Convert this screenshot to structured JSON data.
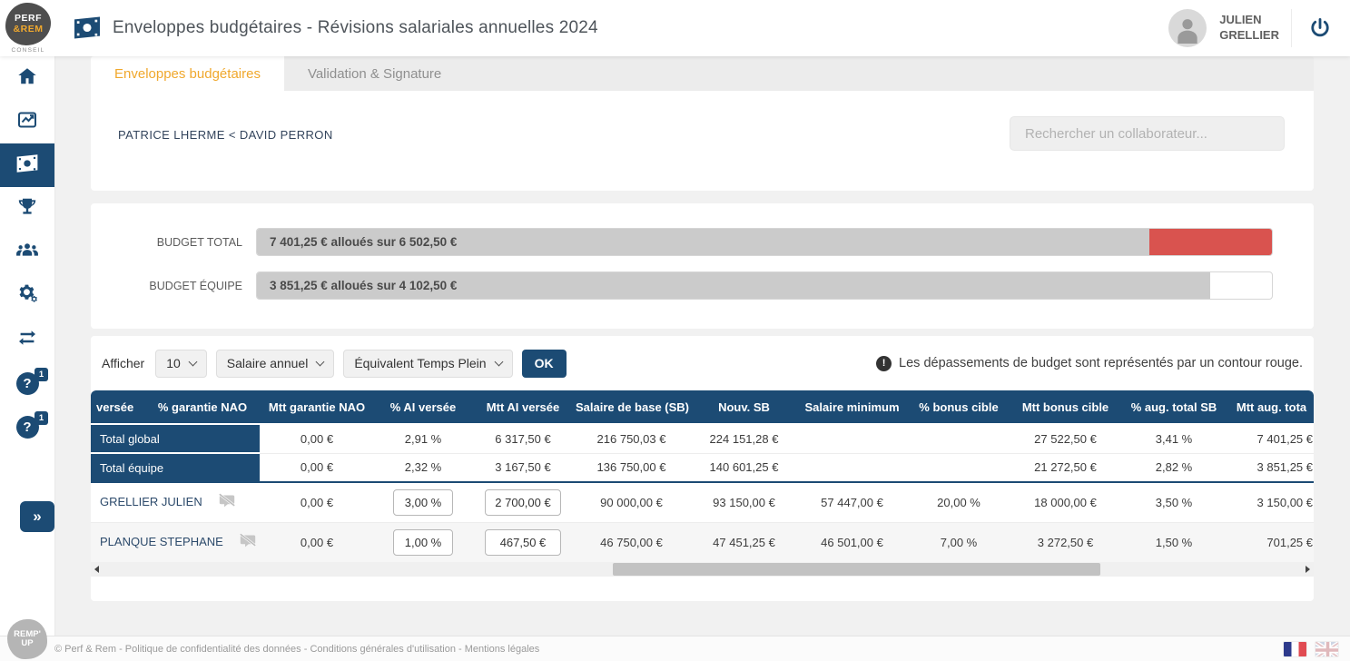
{
  "header": {
    "logo": {
      "line1": "PERF",
      "line2": "&REM",
      "subtitle": "CONSEIL"
    },
    "title": "Enveloppes budgétaires - Révisions salariales annuelles 2024",
    "user": {
      "line1": "JULIEN",
      "line2": "GRELLIER"
    }
  },
  "icons": {
    "help_glyph": "?",
    "alert_glyph": "!",
    "collapse_glyph": "»"
  },
  "sidebar": {
    "badge1": "1",
    "badge2": "1"
  },
  "tabs": {
    "items": [
      {
        "label": "Enveloppes budgétaires"
      },
      {
        "label": "Validation & Signature"
      }
    ]
  },
  "toolbar": {
    "breadcrumb": "PATRICE LHERME < DAVID PERRON"
  },
  "search": {
    "placeholder": "Rechercher un collaborateur..."
  },
  "budget": {
    "bars": [
      {
        "label": "BUDGET TOTAL",
        "text": "7 401,25 € alloués sur 6 502,50 €",
        "fill_pct": 87.9,
        "overflow_pct": 12.1
      },
      {
        "label": "BUDGET ÉQUIPE",
        "text": "3 851,25 € alloués sur 4 102,50 €",
        "fill_pct": 93.9,
        "overflow_pct": 0
      }
    ]
  },
  "controls": {
    "show_label": "Afficher",
    "show_value": "10",
    "period_value": "Salaire annuel",
    "fte_value": "Équivalent Temps Plein",
    "ok_label": "OK"
  },
  "notice": {
    "text": "Les dépassements de budget sont représentés par un contour rouge."
  },
  "table": {
    "headers": [
      "versée",
      "% garantie NAO",
      "Mtt garantie NAO",
      "% AI versée",
      "Mtt AI versée",
      "Salaire de base (SB)",
      "Nouv. SB",
      "Salaire minimum",
      "% bonus cible",
      "Mtt bonus cible",
      "% aug. total SB",
      "Mtt aug. tota"
    ],
    "totals": [
      {
        "label": "Total global",
        "cells": [
          "0,00 €",
          "2,91 %",
          "6 317,50 €",
          "216 750,03 €",
          "224 151,28 €",
          "",
          "",
          "27 522,50 €",
          "3,41 %",
          "7 401,25 €"
        ]
      },
      {
        "label": "Total équipe",
        "cells": [
          "0,00 €",
          "2,32 %",
          "3 167,50 €",
          "136 750,00 €",
          "140 601,25 €",
          "",
          "",
          "21 272,50 €",
          "2,82 %",
          "3 851,25 €"
        ]
      }
    ],
    "employees": [
      {
        "name": "GRELLIER JULIEN",
        "versee": "0,00 €",
        "ai_pct": "3,00 %",
        "ai_amount": "2 700,00 €",
        "cells": [
          "90 000,00 €",
          "93 150,00 €",
          "57 447,00 €",
          "20,00 %",
          "18 000,00 €",
          "3,50 %",
          "3 150,00 €"
        ]
      },
      {
        "name": "PLANQUE STEPHANE",
        "versee": "0,00 €",
        "ai_pct": "1,00 %",
        "ai_amount": "467,50 €",
        "cells": [
          "46 750,00 €",
          "47 451,25 €",
          "46 501,00 €",
          "7,00 %",
          "3 272,50 €",
          "1,50 %",
          "701,25 €"
        ]
      }
    ]
  },
  "footer": {
    "copyright": "© Perf & Rem",
    "separator": " - ",
    "links": [
      "Politique de confidentialité des données",
      "Conditions générales d'utilisation",
      "Mentions légales"
    ],
    "logo": {
      "line1": "REMP'",
      "line2": "UP"
    }
  }
}
